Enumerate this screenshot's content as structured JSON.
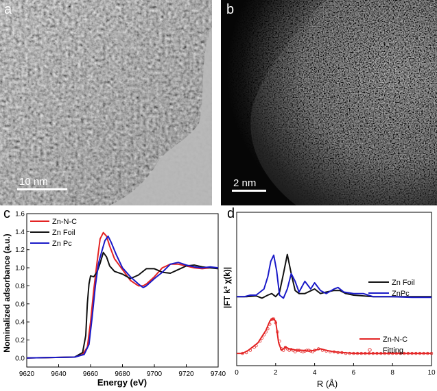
{
  "panels": {
    "a": {
      "letter": "a",
      "scale_bar": "10 nm"
    },
    "b": {
      "letter": "b",
      "scale_bar": "2 nm"
    },
    "c": {
      "letter": "c"
    },
    "d": {
      "letter": "d"
    }
  },
  "colors": {
    "zn_n_c": "#e32424",
    "zn_foil": "#111111",
    "zn_pc": "#1a1ac8"
  },
  "chart_data": [
    {
      "type": "line",
      "panel": "c",
      "xlabel": "Energy (eV)",
      "ylabel": "Nominalized adsorbance (a.u.)",
      "xlim": [
        9620,
        9740
      ],
      "ylim": [
        -0.1,
        1.6
      ],
      "x_ticks": [
        "9620",
        "9640",
        "9660",
        "9680",
        "9700",
        "9720",
        "9740"
      ],
      "y_ticks": [
        "0.0",
        "0.2",
        "0.4",
        "0.6",
        "0.8",
        "1.0",
        "1.2",
        "1.4",
        "1.6"
      ],
      "legend_position": "top-left",
      "series": [
        {
          "name": "Zn-N-C",
          "color": "#e32424",
          "x": [
            9620,
            9650,
            9655,
            9658,
            9660,
            9662,
            9664,
            9666,
            9668,
            9670,
            9672,
            9675,
            9680,
            9685,
            9690,
            9693,
            9695,
            9700,
            9705,
            9710,
            9715,
            9720,
            9725,
            9730,
            9735,
            9740
          ],
          "y": [
            0.0,
            0.01,
            0.04,
            0.12,
            0.4,
            0.75,
            1.05,
            1.32,
            1.39,
            1.35,
            1.24,
            1.1,
            0.98,
            0.86,
            0.8,
            0.8,
            0.82,
            0.9,
            1.0,
            1.04,
            1.04,
            1.02,
            1.0,
            0.99,
            1.0,
            1.0
          ]
        },
        {
          "name": "Zn Foil",
          "color": "#111111",
          "x": [
            9620,
            9650,
            9655,
            9657,
            9658,
            9659,
            9660,
            9662,
            9664,
            9666,
            9668,
            9670,
            9672,
            9675,
            9680,
            9685,
            9690,
            9695,
            9700,
            9705,
            9710,
            9715,
            9720,
            9725,
            9730,
            9735,
            9740
          ],
          "y": [
            0.0,
            0.01,
            0.06,
            0.25,
            0.6,
            0.82,
            0.91,
            0.9,
            0.95,
            1.05,
            1.17,
            1.12,
            1.02,
            0.96,
            0.93,
            0.88,
            0.92,
            0.99,
            0.99,
            0.95,
            0.94,
            0.98,
            1.02,
            1.03,
            1.01,
            1.0,
            0.99
          ]
        },
        {
          "name": "Zn Pc",
          "color": "#1a1ac8",
          "x": [
            9620,
            9650,
            9656,
            9659,
            9661,
            9663,
            9665,
            9667,
            9669,
            9671,
            9673,
            9676,
            9680,
            9685,
            9690,
            9693,
            9695,
            9700,
            9705,
            9710,
            9715,
            9720,
            9725,
            9730,
            9735,
            9740
          ],
          "y": [
            0.0,
            0.01,
            0.04,
            0.15,
            0.45,
            0.8,
            1.05,
            1.18,
            1.3,
            1.35,
            1.28,
            1.15,
            1.0,
            0.9,
            0.82,
            0.78,
            0.8,
            0.88,
            0.95,
            1.04,
            1.06,
            1.03,
            1.01,
            1.0,
            1.01,
            1.0
          ]
        }
      ]
    },
    {
      "type": "line",
      "panel": "d",
      "xlabel": "R (Å)",
      "ylabel": "|FT k³ χ(k)|",
      "xlim": [
        0,
        10
      ],
      "ylim": [
        0,
        1
      ],
      "x_ticks": [
        "0",
        "2",
        "4",
        "6",
        "8",
        "10"
      ],
      "series": [
        {
          "name": "Zn Foil",
          "color": "#111111",
          "x": [
            0,
            0.5,
            1.0,
            1.3,
            1.6,
            1.8,
            2.0,
            2.2,
            2.4,
            2.6,
            2.8,
            3.0,
            3.2,
            3.5,
            4.0,
            4.3,
            4.6,
            5.0,
            5.3,
            5.6,
            6.0,
            6.5,
            7.0,
            8.0,
            9.0,
            10.0
          ],
          "y": [
            0.45,
            0.45,
            0.455,
            0.44,
            0.46,
            0.47,
            0.45,
            0.48,
            0.6,
            0.725,
            0.6,
            0.49,
            0.47,
            0.47,
            0.5,
            0.47,
            0.48,
            0.49,
            0.49,
            0.47,
            0.46,
            0.455,
            0.45,
            0.45,
            0.45,
            0.45
          ]
        },
        {
          "name": "ZnPc",
          "color": "#1a1ac8",
          "x": [
            0,
            0.4,
            0.7,
            1.0,
            1.2,
            1.4,
            1.6,
            1.75,
            1.9,
            2.05,
            2.2,
            2.4,
            2.6,
            2.8,
            3.0,
            3.2,
            3.5,
            3.8,
            4.0,
            4.3,
            4.6,
            5.0,
            5.2,
            5.5,
            6.0,
            6.5,
            7.0,
            8.0,
            9.0,
            10.0
          ],
          "y": [
            0.45,
            0.45,
            0.46,
            0.46,
            0.48,
            0.5,
            0.58,
            0.68,
            0.72,
            0.62,
            0.46,
            0.44,
            0.5,
            0.6,
            0.55,
            0.48,
            0.55,
            0.5,
            0.54,
            0.49,
            0.47,
            0.5,
            0.51,
            0.48,
            0.47,
            0.47,
            0.45,
            0.45,
            0.445,
            0.445
          ]
        },
        {
          "name": "Zn-N-C",
          "color": "#e32424",
          "x": [
            0,
            0.3,
            0.6,
            0.9,
            1.1,
            1.3,
            1.5,
            1.7,
            1.85,
            2.0,
            2.15,
            2.3,
            2.5,
            2.7,
            2.9,
            3.1,
            3.4,
            3.7,
            4.0,
            4.3,
            4.6,
            5.0,
            5.5,
            6.0,
            7.0,
            8.0,
            9.0,
            10.0
          ],
          "y": [
            0.08,
            0.08,
            0.1,
            0.13,
            0.15,
            0.19,
            0.23,
            0.29,
            0.31,
            0.29,
            0.15,
            0.1,
            0.12,
            0.11,
            0.105,
            0.1,
            0.1,
            0.095,
            0.1,
            0.11,
            0.1,
            0.09,
            0.085,
            0.08,
            0.08,
            0.08,
            0.08,
            0.08
          ]
        },
        {
          "name": "Fitting",
          "color": "#e32424",
          "marker": "circle-open",
          "x": [
            0.3,
            0.5,
            0.7,
            0.9,
            1.0,
            1.2,
            1.3,
            1.4,
            1.5,
            1.6,
            1.7,
            1.8,
            1.9,
            2.0,
            2.1,
            2.2,
            2.3,
            2.4,
            2.5,
            2.6,
            2.7,
            2.8,
            2.9,
            3.0,
            3.1,
            3.2,
            3.3,
            3.4,
            3.5,
            3.6,
            3.7,
            3.8,
            3.9,
            4.0,
            4.2,
            4.4,
            4.6,
            4.8,
            5.0,
            5.2,
            5.4,
            5.6,
            5.8,
            6.0,
            6.2,
            6.4,
            6.6,
            6.8,
            7.0,
            7.2,
            7.4,
            7.6,
            7.8,
            8.0,
            8.2,
            8.4,
            8.6,
            8.8,
            9.0,
            9.2,
            9.4,
            9.6,
            9.8,
            10.0
          ],
          "y": [
            0.08,
            0.085,
            0.1,
            0.12,
            0.13,
            0.16,
            0.18,
            0.2,
            0.22,
            0.24,
            0.27,
            0.3,
            0.305,
            0.28,
            0.22,
            0.16,
            0.11,
            0.1,
            0.12,
            0.11,
            0.1,
            0.105,
            0.1,
            0.09,
            0.1,
            0.1,
            0.095,
            0.09,
            0.095,
            0.1,
            0.1,
            0.095,
            0.09,
            0.1,
            0.11,
            0.1,
            0.095,
            0.09,
            0.09,
            0.085,
            0.085,
            0.08,
            0.08,
            0.08,
            0.08,
            0.08,
            0.08,
            0.08,
            0.08,
            0.08,
            0.08,
            0.08,
            0.08,
            0.08,
            0.08,
            0.08,
            0.08,
            0.08,
            0.08,
            0.08,
            0.08,
            0.08,
            0.08,
            0.08
          ]
        }
      ]
    }
  ]
}
